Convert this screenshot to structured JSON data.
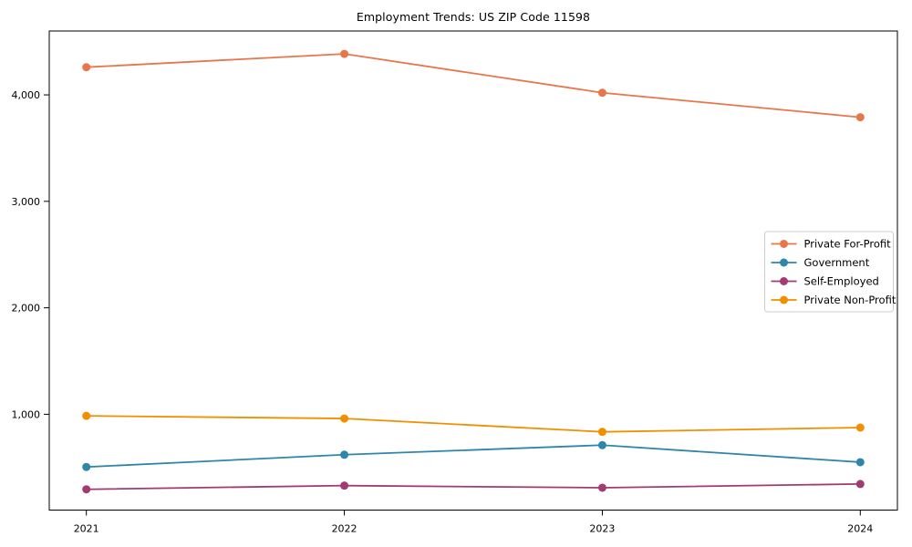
{
  "figure": {
    "background": "#ffffff",
    "axis_color": "#000000",
    "tick_label_color": "#000000",
    "legend_border_color": "#cccccc",
    "legend_background": "#ffffff"
  },
  "chart_data": {
    "type": "line",
    "title": "Employment Trends: US ZIP Code 11598",
    "xlabel": "",
    "ylabel": "",
    "categories": [
      "2021",
      "2022",
      "2023",
      "2024"
    ],
    "series": [
      {
        "name": "Private For-Profit",
        "color": "#E8764B",
        "values": [
          4260,
          4385,
          4020,
          3790
        ]
      },
      {
        "name": "Government",
        "color": "#2E86AB",
        "values": [
          505,
          620,
          710,
          550
        ]
      },
      {
        "name": "Self-Employed",
        "color": "#A23B72",
        "values": [
          295,
          330,
          310,
          345
        ]
      },
      {
        "name": "Private Non-Profit",
        "color": "#F18F01",
        "values": [
          985,
          960,
          835,
          875
        ]
      }
    ],
    "yticks": [
      1000,
      2000,
      3000,
      4000
    ],
    "ytick_labels": [
      "1,000",
      "2,000",
      "3,000",
      "4,000"
    ],
    "ylim": [
      100,
      4600
    ],
    "grid": false,
    "marker": "o",
    "legend_position": "center right"
  }
}
